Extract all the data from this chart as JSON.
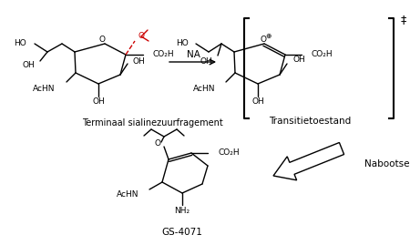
{
  "background_color": "#ffffff",
  "text_color": "#000000",
  "red_color": "#cc0000",
  "label1": "Terminaal sialinezuurfragement",
  "label2": "Transitietoestand",
  "label3": "GS-4071",
  "arrow1_label": "NA",
  "arrow2_label": "Nabootsen",
  "dagger": "‡",
  "oplus": "⊕"
}
